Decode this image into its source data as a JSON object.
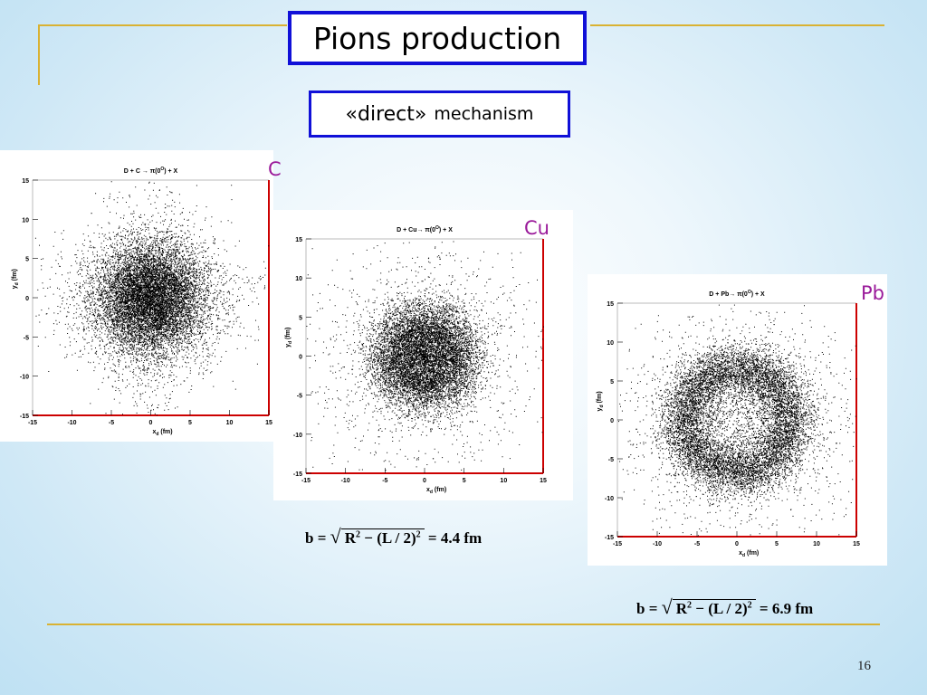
{
  "slide": {
    "title": "Pions production",
    "subtitle_main": "«direct»",
    "subtitle_rest": "mechanism",
    "page_number": "16"
  },
  "plot_axes": {
    "ticks": [
      "-15",
      "-10",
      "-5",
      "0",
      "5",
      "10",
      "15"
    ],
    "x_label": "x",
    "x_sub": "d",
    "x_unit": " (fm)",
    "y_label": "y",
    "y_sub": "d",
    "y_unit": " (fm)"
  },
  "plots": [
    {
      "id": "C",
      "tag": "C",
      "title": "D + C → π(0",
      "title_sup": "O",
      "title_end": ") + X",
      "ring_radius": 0,
      "spread": 4.0,
      "n": 11000
    },
    {
      "id": "Cu",
      "tag": "Cu",
      "title": "D + Cu→ π(0",
      "title_sup": "O",
      "title_end": ") + X",
      "ring_radius": 4.4,
      "spread": 2.0,
      "n": 10000
    },
    {
      "id": "Pb",
      "tag": "Pb",
      "title": "D + Pb→ π(0",
      "title_sup": "O",
      "title_end": ") + X",
      "ring_radius": 6.9,
      "spread": 1.6,
      "n": 11000
    }
  ],
  "formulas": [
    {
      "lhs": "b =",
      "rad": "R",
      "exp": "2",
      "mid": " − (L / 2)",
      "exp2": "2",
      "rhs": "= 4.4 fm"
    },
    {
      "lhs": "b =",
      "rad": "R",
      "exp": "2",
      "mid": " − (L / 2)",
      "exp2": "2",
      "rhs": "= 6.9 fm"
    }
  ],
  "colors": {
    "frame": "#1010d8",
    "tag": "#9a1a9a",
    "axis_red": "#cc0000",
    "gold_line": "#d9b233"
  }
}
